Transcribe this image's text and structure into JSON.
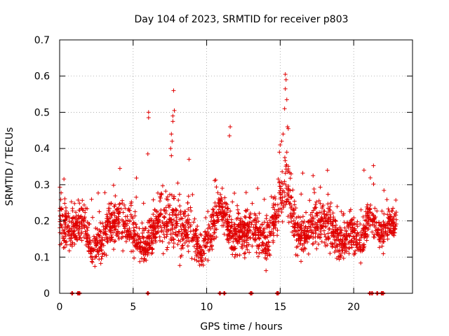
{
  "chart_data": {
    "type": "scatter",
    "title": "Day 104 of 2023, SRMTID for receiver p803",
    "xlabel": "GPS time / hours",
    "ylabel": "SRMTID / TECUs",
    "xlim": [
      0,
      24
    ],
    "ylim": [
      0,
      0.7
    ],
    "x_ticks": [
      0,
      5,
      10,
      15,
      20
    ],
    "x_tick_labels": [
      "0",
      "5",
      "10",
      "15",
      "20"
    ],
    "y_ticks": [
      0,
      0.1,
      0.2,
      0.3,
      0.4,
      0.5,
      0.6,
      0.7
    ],
    "y_tick_labels": [
      "0",
      "0.1",
      "0.2",
      "0.3",
      "0.4",
      "0.5",
      "0.6",
      "0.7"
    ],
    "grid": true,
    "marker": "plus",
    "color": "#e00000",
    "baseline_x": [
      0.85,
      1.25,
      1.35,
      6.0,
      10.9,
      11.2,
      13.0,
      13.05,
      14.8,
      14.85,
      21.1,
      21.25,
      21.6,
      21.9,
      22.0
    ],
    "peaks": [
      {
        "x": 6.05,
        "y": 0.5
      },
      {
        "x": 6.05,
        "y": 0.485
      },
      {
        "x": 6.0,
        "y": 0.385
      },
      {
        "x": 7.75,
        "y": 0.56
      },
      {
        "x": 7.8,
        "y": 0.505
      },
      {
        "x": 7.7,
        "y": 0.49
      },
      {
        "x": 7.7,
        "y": 0.475
      },
      {
        "x": 7.6,
        "y": 0.44
      },
      {
        "x": 7.65,
        "y": 0.42
      },
      {
        "x": 7.55,
        "y": 0.4
      },
      {
        "x": 7.6,
        "y": 0.38
      },
      {
        "x": 11.6,
        "y": 0.46
      },
      {
        "x": 11.55,
        "y": 0.435
      },
      {
        "x": 15.35,
        "y": 0.605
      },
      {
        "x": 15.4,
        "y": 0.59
      },
      {
        "x": 15.35,
        "y": 0.565
      },
      {
        "x": 15.45,
        "y": 0.535
      },
      {
        "x": 15.3,
        "y": 0.51
      },
      {
        "x": 15.5,
        "y": 0.46
      },
      {
        "x": 15.55,
        "y": 0.455
      },
      {
        "x": 15.2,
        "y": 0.44
      },
      {
        "x": 15.1,
        "y": 0.42
      },
      {
        "x": 15.0,
        "y": 0.41
      },
      {
        "x": 14.95,
        "y": 0.39
      },
      {
        "x": 20.7,
        "y": 0.34
      },
      {
        "x": 8.8,
        "y": 0.37
      },
      {
        "x": 4.1,
        "y": 0.345
      }
    ],
    "envelope": [
      {
        "x": 0,
        "y": 0.2,
        "spread": 0.06
      },
      {
        "x": 0.8,
        "y": 0.17,
        "spread": 0.05
      },
      {
        "x": 1.5,
        "y": 0.21,
        "spread": 0.06
      },
      {
        "x": 2.2,
        "y": 0.13,
        "spread": 0.04
      },
      {
        "x": 2.8,
        "y": 0.14,
        "spread": 0.05
      },
      {
        "x": 3.5,
        "y": 0.2,
        "spread": 0.06
      },
      {
        "x": 4.3,
        "y": 0.2,
        "spread": 0.06
      },
      {
        "x": 5.2,
        "y": 0.16,
        "spread": 0.05
      },
      {
        "x": 5.8,
        "y": 0.12,
        "spread": 0.04
      },
      {
        "x": 6.5,
        "y": 0.19,
        "spread": 0.06
      },
      {
        "x": 7.2,
        "y": 0.2,
        "spread": 0.07
      },
      {
        "x": 8.0,
        "y": 0.18,
        "spread": 0.07
      },
      {
        "x": 8.8,
        "y": 0.18,
        "spread": 0.06
      },
      {
        "x": 9.6,
        "y": 0.12,
        "spread": 0.05
      },
      {
        "x": 10.3,
        "y": 0.17,
        "spread": 0.06
      },
      {
        "x": 11.0,
        "y": 0.24,
        "spread": 0.06
      },
      {
        "x": 11.8,
        "y": 0.15,
        "spread": 0.05
      },
      {
        "x": 12.5,
        "y": 0.17,
        "spread": 0.05
      },
      {
        "x": 13.3,
        "y": 0.18,
        "spread": 0.05
      },
      {
        "x": 14.1,
        "y": 0.14,
        "spread": 0.05
      },
      {
        "x": 14.7,
        "y": 0.22,
        "spread": 0.06
      },
      {
        "x": 15.4,
        "y": 0.3,
        "spread": 0.08
      },
      {
        "x": 16.1,
        "y": 0.17,
        "spread": 0.06
      },
      {
        "x": 16.8,
        "y": 0.16,
        "spread": 0.05
      },
      {
        "x": 17.5,
        "y": 0.2,
        "spread": 0.06
      },
      {
        "x": 18.3,
        "y": 0.19,
        "spread": 0.06
      },
      {
        "x": 19.0,
        "y": 0.13,
        "spread": 0.05
      },
      {
        "x": 19.8,
        "y": 0.17,
        "spread": 0.05
      },
      {
        "x": 20.5,
        "y": 0.14,
        "spread": 0.05
      },
      {
        "x": 21.1,
        "y": 0.22,
        "spread": 0.05
      },
      {
        "x": 21.8,
        "y": 0.16,
        "spread": 0.04
      },
      {
        "x": 22.4,
        "y": 0.19,
        "spread": 0.04
      },
      {
        "x": 22.9,
        "y": 0.19,
        "spread": 0.04
      }
    ],
    "density_per_hour": 100,
    "x_end": 22.9
  }
}
